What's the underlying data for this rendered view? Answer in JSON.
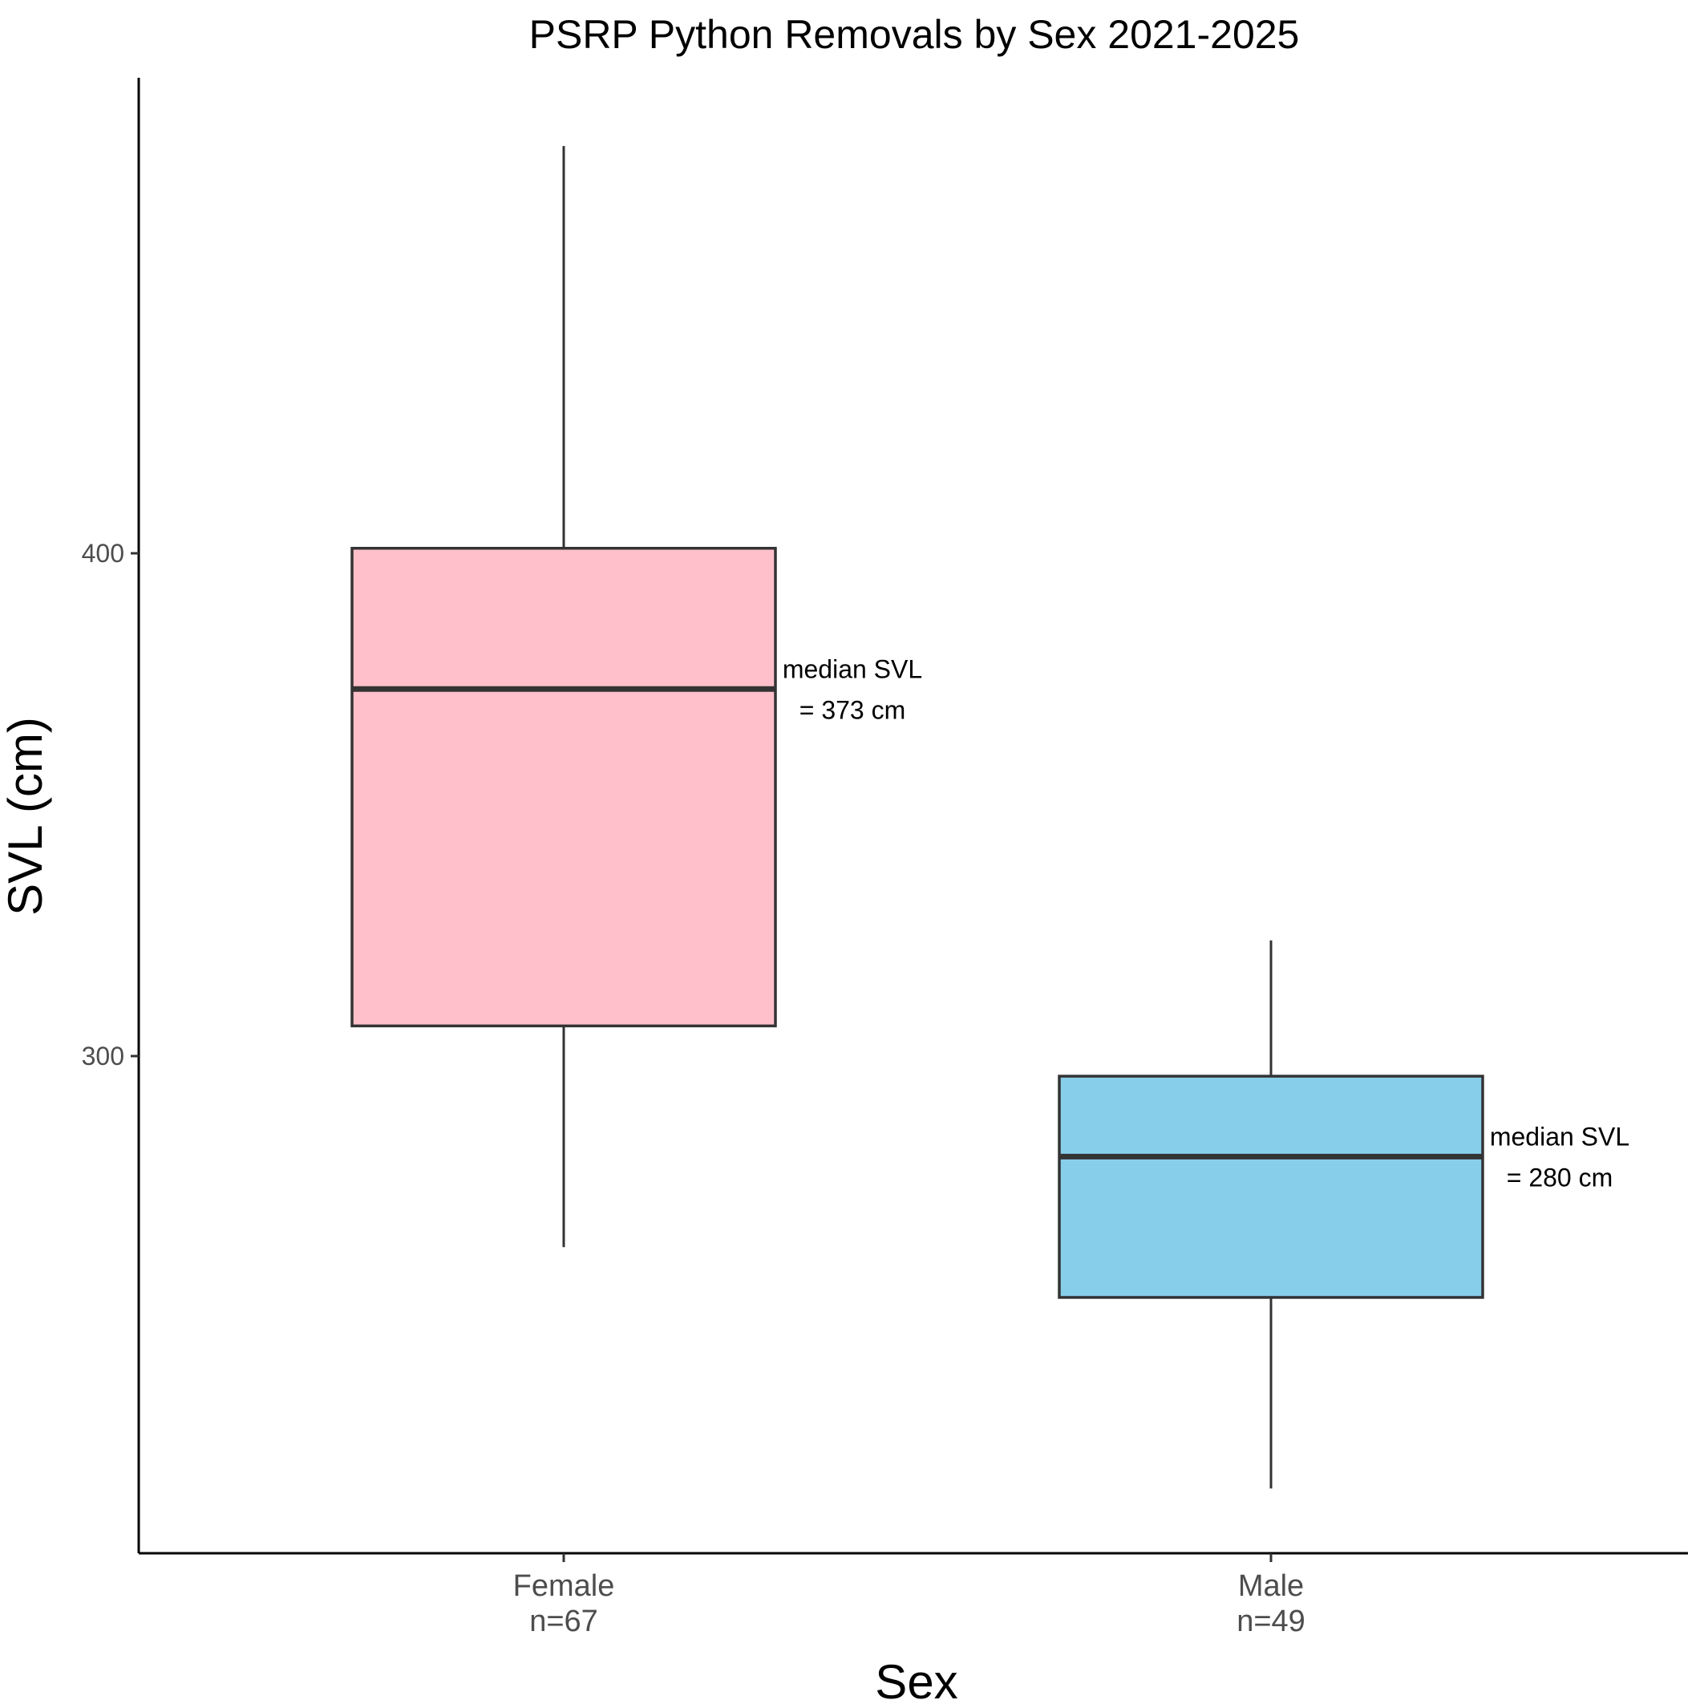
{
  "chart_data": {
    "type": "boxplot",
    "title": "PSRP Python Removals by Sex 2021-2025",
    "xlabel": "Sex",
    "ylabel": "SVL (cm)",
    "ylim": [
      190,
      488
    ],
    "yticks": [
      300,
      400
    ],
    "grid": false,
    "legend": "none",
    "categories": [
      {
        "name": "Female",
        "n_label": "n=67",
        "color": "#FFC0CB",
        "whisker_low": 262,
        "q1": 306,
        "median": 373,
        "q3": 401,
        "whisker_high": 481,
        "annotation": [
          "median SVL",
          "= 373 cm"
        ]
      },
      {
        "name": "Male",
        "n_label": "n=49",
        "color": "#87CEEB",
        "whisker_low": 214,
        "q1": 252,
        "median": 280,
        "q3": 296,
        "whisker_high": 323,
        "annotation": [
          "median SVL",
          "= 280 cm"
        ]
      }
    ]
  }
}
